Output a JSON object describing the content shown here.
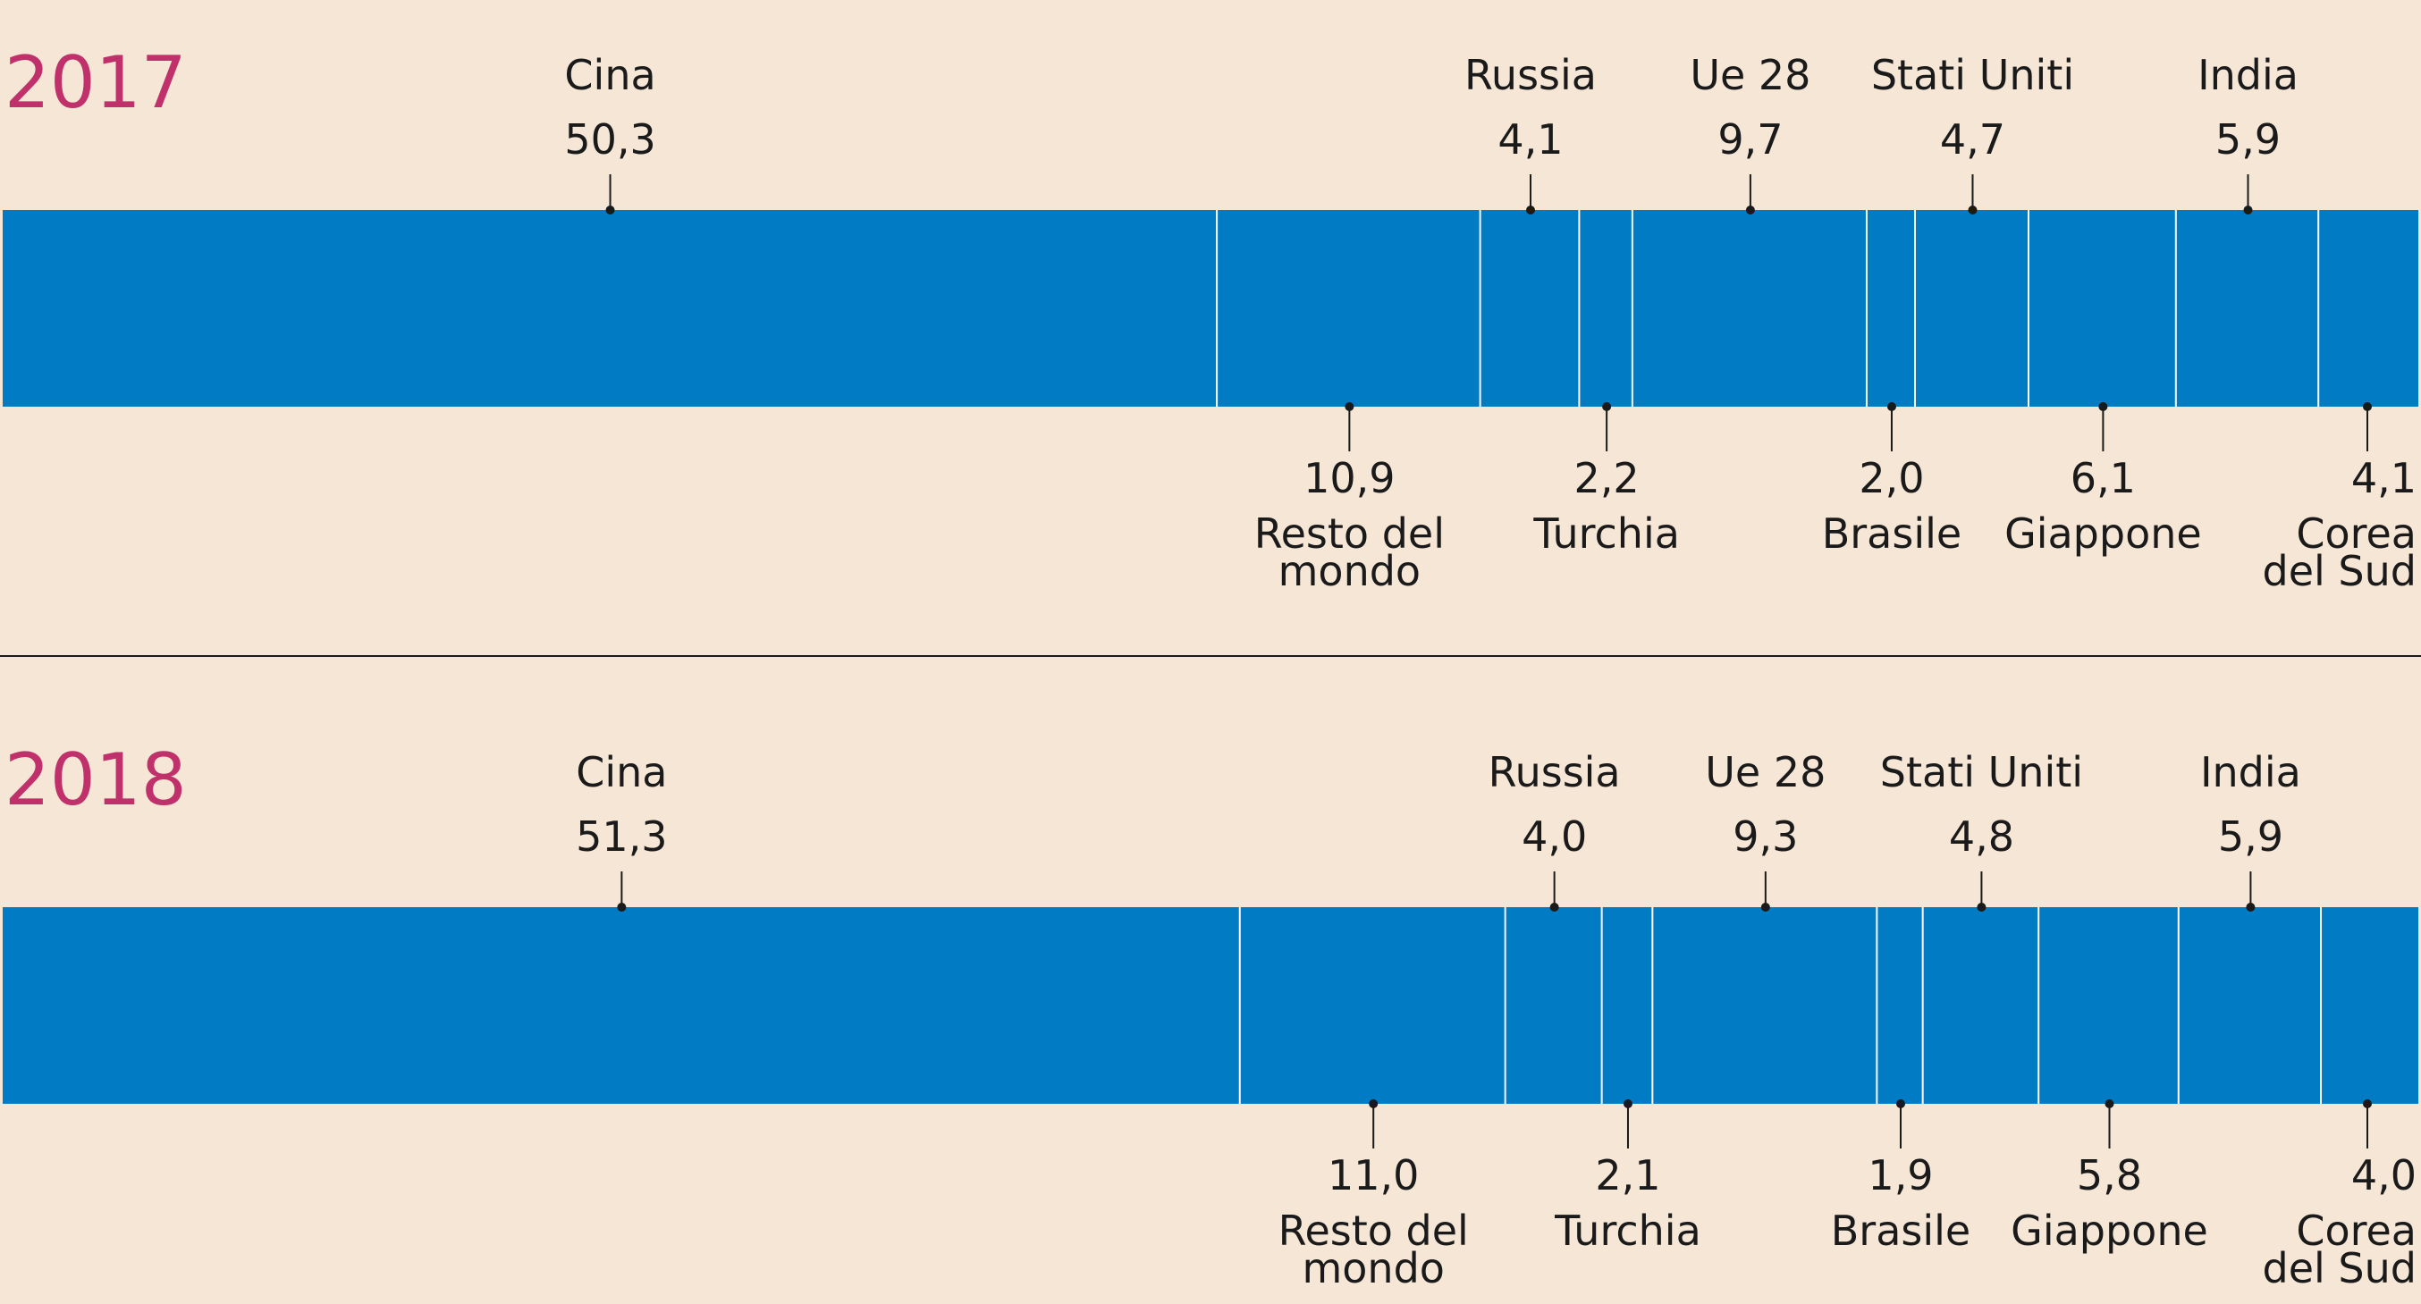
{
  "colors": {
    "background": "#f5e6d6",
    "bar": "#007bc4",
    "separator": "#ffffff",
    "year": "#c0306a",
    "text": "#1a1a1a",
    "rule": "#1a1a1a"
  },
  "chart_data": [
    {
      "type": "bar",
      "stacked": "horizontal",
      "unit": "%",
      "title": "2017",
      "categories": [
        "Cina",
        "Resto del mondo",
        "Russia",
        "Turchia",
        "Ue 28",
        "Brasile",
        "Stati Uniti",
        "Giappone",
        "India",
        "Corea del Sud"
      ],
      "values": [
        50.3,
        10.9,
        4.1,
        2.2,
        9.7,
        2.0,
        4.7,
        6.1,
        5.9,
        4.1
      ],
      "value_labels": [
        "50,3",
        "10,9",
        "4,1",
        "2,2",
        "9,7",
        "2,0",
        "4,7",
        "6,1",
        "5,9",
        "4,1"
      ],
      "label_lines": [
        [
          "Cina"
        ],
        [
          "Resto del",
          "mondo"
        ],
        [
          "Russia"
        ],
        [
          "Turchia"
        ],
        [
          "Ue 28"
        ],
        [
          "Brasile"
        ],
        [
          "Stati Uniti"
        ],
        [
          "Giappone"
        ],
        [
          "India"
        ],
        [
          "Corea",
          "del Sud"
        ]
      ],
      "label_side": [
        "top",
        "bottom",
        "top",
        "bottom",
        "top",
        "bottom",
        "top",
        "bottom",
        "top",
        "bottom"
      ]
    },
    {
      "type": "bar",
      "stacked": "horizontal",
      "unit": "%",
      "title": "2018",
      "categories": [
        "Cina",
        "Resto del mondo",
        "Russia",
        "Turchia",
        "Ue 28",
        "Brasile",
        "Stati Uniti",
        "Giappone",
        "India",
        "Corea del Sud"
      ],
      "values": [
        51.3,
        11.0,
        4.0,
        2.1,
        9.3,
        1.9,
        4.8,
        5.8,
        5.9,
        4.0
      ],
      "value_labels": [
        "51,3",
        "11,0",
        "4,0",
        "2,1",
        "9,3",
        "1,9",
        "4,8",
        "5,8",
        "5,9",
        "4,0"
      ],
      "label_lines": [
        [
          "Cina"
        ],
        [
          "Resto del",
          "mondo"
        ],
        [
          "Russia"
        ],
        [
          "Turchia"
        ],
        [
          "Ue 28"
        ],
        [
          "Brasile"
        ],
        [
          "Stati Uniti"
        ],
        [
          "Giappone"
        ],
        [
          "India"
        ],
        [
          "Corea",
          "del Sud"
        ]
      ],
      "label_side": [
        "top",
        "bottom",
        "top",
        "bottom",
        "top",
        "bottom",
        "top",
        "bottom",
        "top",
        "bottom"
      ]
    }
  ]
}
